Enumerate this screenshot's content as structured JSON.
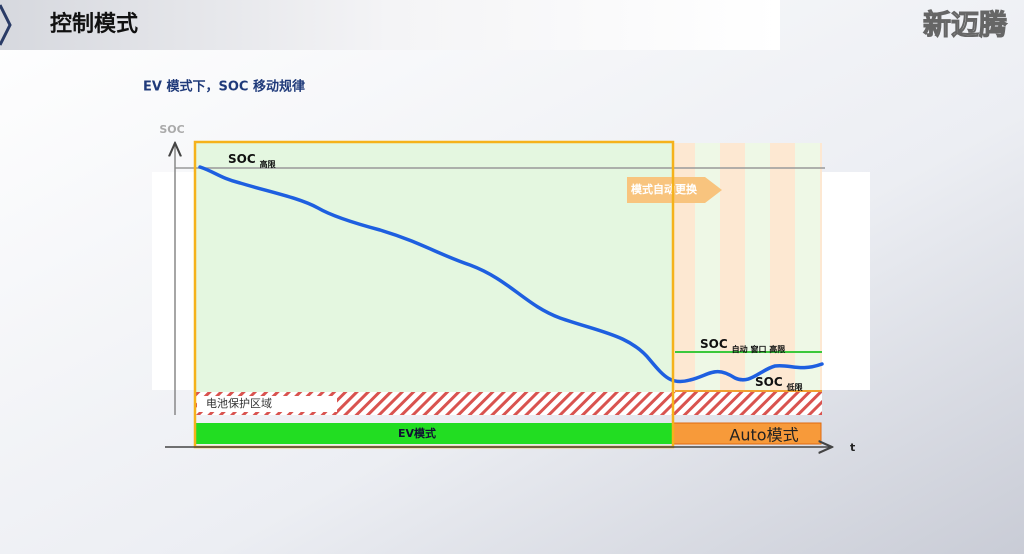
{
  "header": {
    "title": "控制模式",
    "logo": "新迈腾"
  },
  "subtitle": "EV 模式下，SOC 移动规律",
  "diagram": {
    "y_axis_label": "SOC",
    "x_axis_label": "t",
    "upper_limit": {
      "label": "SOC",
      "sub": "高限"
    },
    "mode_switch": "模式自动更换",
    "auto_window_high": {
      "label": "SOC",
      "sub": "自动 窗口 高限"
    },
    "lower_limit": {
      "label": "SOC",
      "sub": "低限"
    },
    "protection_zone": "电池保护区域",
    "ev_mode": "EV模式",
    "auto_mode": "Auto模式"
  }
}
